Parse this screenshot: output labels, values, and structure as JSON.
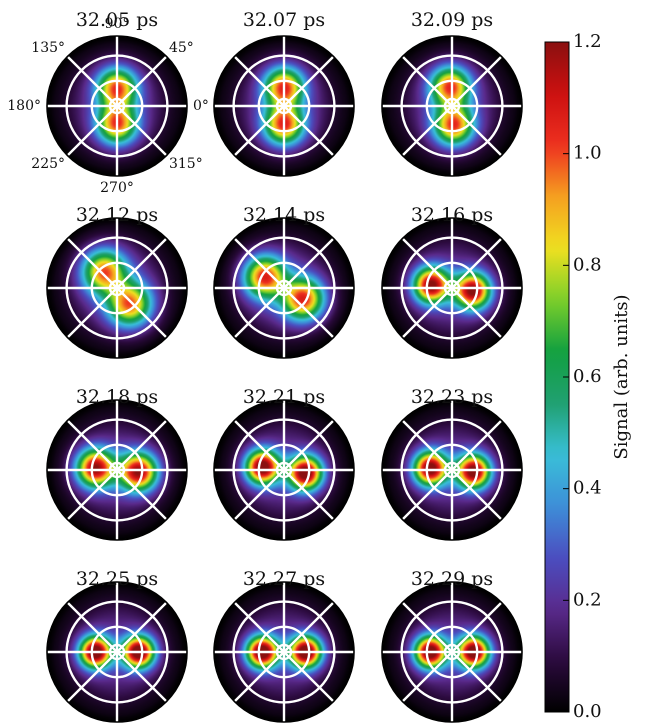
{
  "chart_data": {
    "type": "heatmap",
    "projection": "polar",
    "panels": [
      {
        "title": "32.05 ps",
        "lobe_axis_deg": 90,
        "lobe_separation": 0.26,
        "lobe_spread": 0.2,
        "peak": 0.82
      },
      {
        "title": "32.07 ps",
        "lobe_axis_deg": 90,
        "lobe_separation": 0.27,
        "lobe_spread": 0.2,
        "peak": 0.85
      },
      {
        "title": "32.09 ps",
        "lobe_axis_deg": 95,
        "lobe_separation": 0.28,
        "lobe_spread": 0.2,
        "peak": 0.84
      },
      {
        "title": "32.12 ps",
        "lobe_axis_deg": 128,
        "lobe_separation": 0.3,
        "lobe_spread": 0.22,
        "peak": 0.8
      },
      {
        "title": "32.14 ps",
        "lobe_axis_deg": 150,
        "lobe_separation": 0.32,
        "lobe_spread": 0.21,
        "peak": 0.88
      },
      {
        "title": "32.16 ps",
        "lobe_axis_deg": 172,
        "lobe_separation": 0.3,
        "lobe_spread": 0.18,
        "peak": 1.05
      },
      {
        "title": "32.18 ps",
        "lobe_axis_deg": 175,
        "lobe_separation": 0.31,
        "lobe_spread": 0.19,
        "peak": 1.02
      },
      {
        "title": "32.21 ps",
        "lobe_axis_deg": 172,
        "lobe_separation": 0.31,
        "lobe_spread": 0.17,
        "peak": 1.12
      },
      {
        "title": "32.23 ps",
        "lobe_axis_deg": 176,
        "lobe_separation": 0.31,
        "lobe_spread": 0.17,
        "peak": 1.1
      },
      {
        "title": "32.25 ps",
        "lobe_axis_deg": 180,
        "lobe_separation": 0.31,
        "lobe_spread": 0.16,
        "peak": 1.15
      },
      {
        "title": "32.27 ps",
        "lobe_axis_deg": 180,
        "lobe_separation": 0.31,
        "lobe_spread": 0.16,
        "peak": 1.16
      },
      {
        "title": "32.29 ps",
        "lobe_axis_deg": 180,
        "lobe_separation": 0.31,
        "lobe_spread": 0.16,
        "peak": 1.14
      }
    ],
    "angle_labels": [
      "0°",
      "45°",
      "90°",
      "135°",
      "180°",
      "225°",
      "270°",
      "315°"
    ],
    "angle_values_deg": [
      0,
      45,
      90,
      135,
      180,
      225,
      270,
      315
    ],
    "grid_rings": 3,
    "colorbar": {
      "label": "Signal (arb. units)",
      "min": 0.0,
      "max": 1.2,
      "ticks": [
        0.0,
        0.2,
        0.4,
        0.6,
        0.8,
        1.0,
        1.2
      ],
      "tick_labels": [
        "0.0",
        "0.2",
        "0.4",
        "0.6",
        "0.8",
        "1.0",
        "1.2"
      ],
      "colormap": "spectral (black–purple–blue–cyan–green–yellow–orange–red–dark red)",
      "stops": [
        "#000000",
        "#2b0a3d",
        "#5a2a8c",
        "#4b4ec0",
        "#3d8fd8",
        "#39c0d8",
        "#20a070",
        "#12a040",
        "#7ccf2a",
        "#f0e020",
        "#f5a020",
        "#ee3020",
        "#cc1010",
        "#8a1010"
      ]
    }
  }
}
